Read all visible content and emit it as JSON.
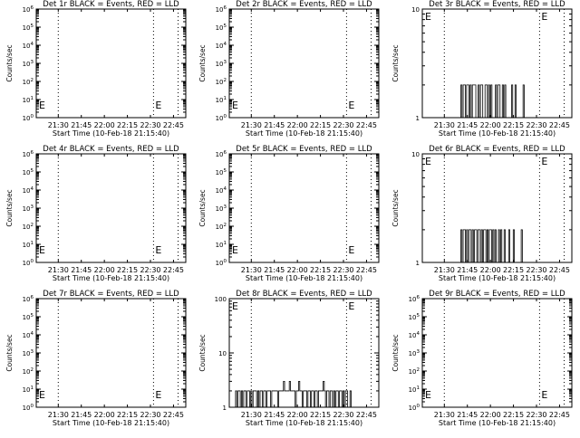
{
  "chart_data": [
    {
      "type": "line",
      "title": "Det 1r BLACK = Events, RED = LLD",
      "xlabel": "Start Time (10-Feb-18 21:15:40)",
      "ylabel": "Counts/sec",
      "x_ticks": [
        "21:30",
        "21:45",
        "22:00",
        "22:15",
        "22:30",
        "22:45"
      ],
      "y_scale": "log",
      "ylim": [
        1,
        1000000
      ],
      "y_ticks": [
        "10^0",
        "10^1",
        "10^2",
        "10^3",
        "10^4",
        "10^5",
        "10^6"
      ],
      "vlines": [
        "21:30",
        "22:32",
        "22:48"
      ],
      "marker_label": "E",
      "series": []
    },
    {
      "type": "line",
      "title": "Det 2r BLACK = Events, RED = LLD",
      "xlabel": "Start Time (10-Feb-18 21:15:40)",
      "ylabel": "Counts/sec",
      "x_ticks": [
        "21:30",
        "21:45",
        "22:00",
        "22:15",
        "22:30",
        "22:45"
      ],
      "y_scale": "log",
      "ylim": [
        1,
        1000000
      ],
      "y_ticks": [
        "10^0",
        "10^1",
        "10^2",
        "10^3",
        "10^4",
        "10^5",
        "10^6"
      ],
      "vlines": [
        "21:30",
        "22:32",
        "22:48"
      ],
      "marker_label": "E",
      "series": []
    },
    {
      "type": "line",
      "title": "Det 3r BLACK = Events, RED = LLD",
      "xlabel": "Start Time (10-Feb-18 21:15:40)",
      "ylabel": "Counts/sec",
      "x_ticks": [
        "21:30",
        "21:45",
        "22:00",
        "22:15",
        "22:30",
        "22:45"
      ],
      "y_scale": "log",
      "ylim": [
        1,
        10
      ],
      "y_ticks": [
        "1",
        "10"
      ],
      "vlines": [
        "21:30",
        "22:32",
        "22:48"
      ],
      "marker_label": "E",
      "series": [
        {
          "x_start": "21:40",
          "x_end": "22:25",
          "values": [
            1,
            2,
            1,
            2,
            2,
            1,
            2,
            2,
            1,
            2,
            1,
            2,
            2,
            2,
            1,
            1,
            2,
            1,
            2,
            2,
            1,
            1,
            2,
            2,
            1,
            2,
            1,
            2,
            1,
            1,
            1,
            2,
            1,
            2,
            2,
            1,
            1,
            2,
            1,
            2,
            1,
            1,
            1,
            1,
            1,
            2,
            1,
            1,
            2,
            1,
            1,
            1,
            1,
            1,
            1,
            2,
            1,
            1,
            1,
            1
          ]
        }
      ]
    },
    {
      "type": "line",
      "title": "Det 4r BLACK = Events, RED = LLD",
      "xlabel": "Start Time (10-Feb-18 21:15:40)",
      "ylabel": "Counts/sec",
      "x_ticks": [
        "21:30",
        "21:45",
        "22:00",
        "22:15",
        "22:30",
        "22:45"
      ],
      "y_scale": "log",
      "ylim": [
        1,
        1000000
      ],
      "y_ticks": [
        "10^0",
        "10^1",
        "10^2",
        "10^3",
        "10^4",
        "10^5",
        "10^6"
      ],
      "vlines": [
        "21:30",
        "22:32",
        "22:48"
      ],
      "marker_label": "E",
      "series": []
    },
    {
      "type": "line",
      "title": "Det 5r BLACK = Events, RED = LLD",
      "xlabel": "Start Time (10-Feb-18 21:15:40)",
      "ylabel": "Counts/sec",
      "x_ticks": [
        "21:30",
        "21:45",
        "22:00",
        "22:15",
        "22:30",
        "22:45"
      ],
      "y_scale": "log",
      "ylim": [
        1,
        1000000
      ],
      "y_ticks": [
        "10^0",
        "10^1",
        "10^2",
        "10^3",
        "10^4",
        "10^5",
        "10^6"
      ],
      "vlines": [
        "21:30",
        "22:32",
        "22:48"
      ],
      "marker_label": "E",
      "series": []
    },
    {
      "type": "line",
      "title": "Det 6r BLACK = Events, RED = LLD",
      "xlabel": "Start Time (10-Feb-18 21:15:40)",
      "ylabel": "Counts/sec",
      "x_ticks": [
        "21:30",
        "21:45",
        "22:00",
        "22:15",
        "22:30",
        "22:45"
      ],
      "y_scale": "log",
      "ylim": [
        1,
        10
      ],
      "y_ticks": [
        "1",
        "10"
      ],
      "vlines": [
        "21:30",
        "22:32",
        "22:48"
      ],
      "marker_label": "E",
      "series": [
        {
          "x_start": "21:40",
          "x_end": "22:23",
          "values": [
            1,
            2,
            1,
            2,
            2,
            1,
            2,
            1,
            2,
            2,
            1,
            2,
            1,
            2,
            2,
            1,
            2,
            2,
            1,
            2,
            1,
            2,
            2,
            1,
            2,
            1,
            2,
            2,
            1,
            2,
            1,
            2,
            1,
            1,
            2,
            1,
            2,
            1,
            1,
            2,
            1,
            1,
            1,
            2,
            1,
            1,
            1,
            2,
            1,
            1,
            1,
            1,
            1,
            1,
            2,
            1,
            1,
            1
          ]
        }
      ]
    },
    {
      "type": "line",
      "title": "Det 7r BLACK = Events, RED = LLD",
      "xlabel": "Start Time (10-Feb-18 21:15:40)",
      "ylabel": "Counts/sec",
      "x_ticks": [
        "21:30",
        "21:45",
        "22:00",
        "22:15",
        "22:30",
        "22:45"
      ],
      "y_scale": "log",
      "ylim": [
        1,
        1000000
      ],
      "y_ticks": [
        "10^0",
        "10^1",
        "10^2",
        "10^3",
        "10^4",
        "10^5",
        "10^6"
      ],
      "vlines": [
        "21:30",
        "22:32",
        "22:48"
      ],
      "marker_label": "E",
      "series": []
    },
    {
      "type": "line",
      "title": "Det 8r BLACK = Events, RED = LLD",
      "xlabel": "Start Time (10-Feb-18 21:15:40)",
      "ylabel": "Counts/sec",
      "x_ticks": [
        "21:30",
        "21:45",
        "22:00",
        "22:15",
        "22:30",
        "22:45"
      ],
      "y_scale": "log",
      "ylim": [
        1,
        100
      ],
      "y_ticks": [
        "1",
        "10",
        "100"
      ],
      "vlines": [
        "21:30",
        "22:32",
        "22:48"
      ],
      "marker_label": "E",
      "series": [
        {
          "x_start": "21:19",
          "x_end": "22:35",
          "values": [
            1,
            2,
            1,
            2,
            2,
            1,
            2,
            1,
            2,
            2,
            1,
            2,
            2,
            1,
            2,
            1,
            2,
            2,
            2,
            1,
            2,
            1,
            2,
            2,
            1,
            2,
            2,
            1,
            2,
            2,
            2,
            1,
            2,
            2,
            2,
            2,
            2,
            1,
            2,
            2,
            2,
            2,
            3,
            2,
            2,
            2,
            2,
            3,
            2,
            2,
            2,
            2,
            1,
            2,
            2,
            3,
            2,
            2,
            1,
            2,
            2,
            2,
            1,
            2,
            2,
            1,
            2,
            2,
            1,
            2,
            2,
            1,
            2,
            2,
            2,
            2,
            3,
            2,
            1,
            2,
            2,
            1,
            2,
            2,
            1,
            2,
            1,
            2,
            2,
            1,
            2,
            2,
            1,
            2,
            1,
            2,
            2,
            1,
            1,
            2
          ]
        }
      ]
    },
    {
      "type": "line",
      "title": "Det 9r BLACK = Events, RED = LLD",
      "xlabel": "Start Time (10-Feb-18 21:15:40)",
      "ylabel": "Counts/sec",
      "x_ticks": [
        "21:30",
        "21:45",
        "22:00",
        "22:15",
        "22:30",
        "22:45"
      ],
      "y_scale": "log",
      "ylim": [
        1,
        1000000
      ],
      "y_ticks": [
        "10^0",
        "10^1",
        "10^2",
        "10^3",
        "10^4",
        "10^5",
        "10^6"
      ],
      "vlines": [
        "21:30",
        "22:32",
        "22:48"
      ],
      "marker_label": "E",
      "series": []
    }
  ]
}
